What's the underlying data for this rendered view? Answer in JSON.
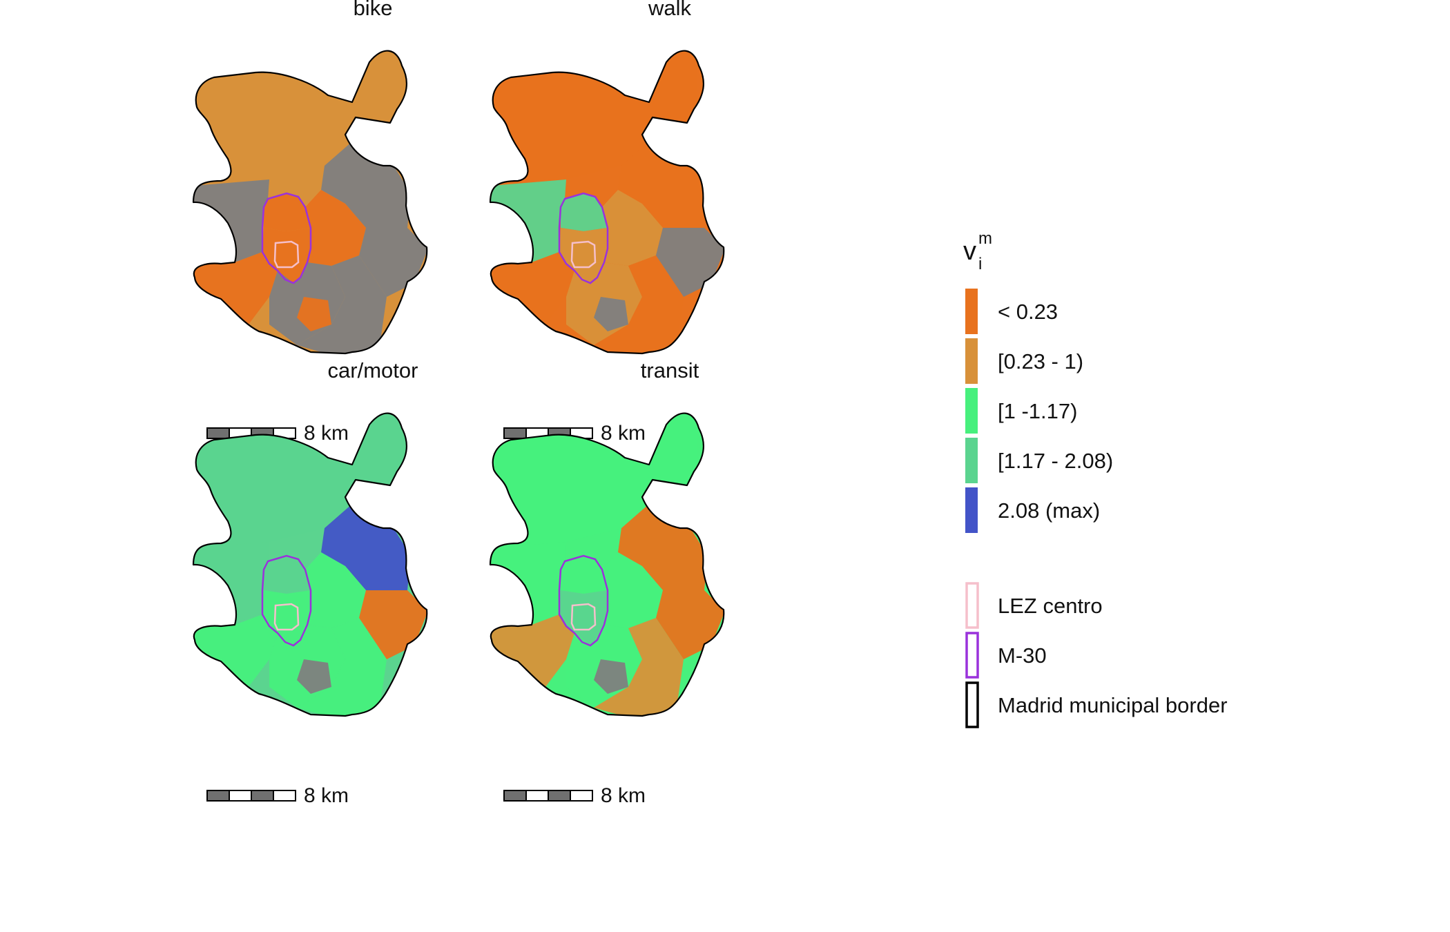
{
  "colors": {
    "lt023": "#E8721E",
    "r023_1": "#D8913A",
    "r1_117": "#47F07D",
    "r117_208": "#5BD48F",
    "max": "#4354C8",
    "nodata": "#808080",
    "lez": "#F5BFCB",
    "m30": "#9A32DB",
    "border": "#000000"
  },
  "panels": [
    {
      "title": "bike",
      "scale_label": "8 km"
    },
    {
      "title": "walk",
      "scale_label": "8 km"
    },
    {
      "title": "car/motor",
      "scale_label": "8 km"
    },
    {
      "title": "transit",
      "scale_label": "8 km"
    }
  ],
  "legend": {
    "title_main": "v",
    "title_sub": "i",
    "title_sup": "m",
    "classes": [
      {
        "label": "< 0.23",
        "color_key": "lt023"
      },
      {
        "label": "[0.23 - 1)",
        "color_key": "r023_1"
      },
      {
        "label": "[1 -1.17)",
        "color_key": "r1_117"
      },
      {
        "label": "[1.17 - 2.08)",
        "color_key": "r117_208"
      },
      {
        "label": "2.08 (max)",
        "color_key": "max"
      }
    ],
    "outlines": [
      {
        "label": "LEZ centro",
        "color_key": "lez"
      },
      {
        "label": "M-30",
        "color_key": "m30"
      },
      {
        "label": "Madrid municipal border",
        "color_key": "border"
      }
    ]
  }
}
